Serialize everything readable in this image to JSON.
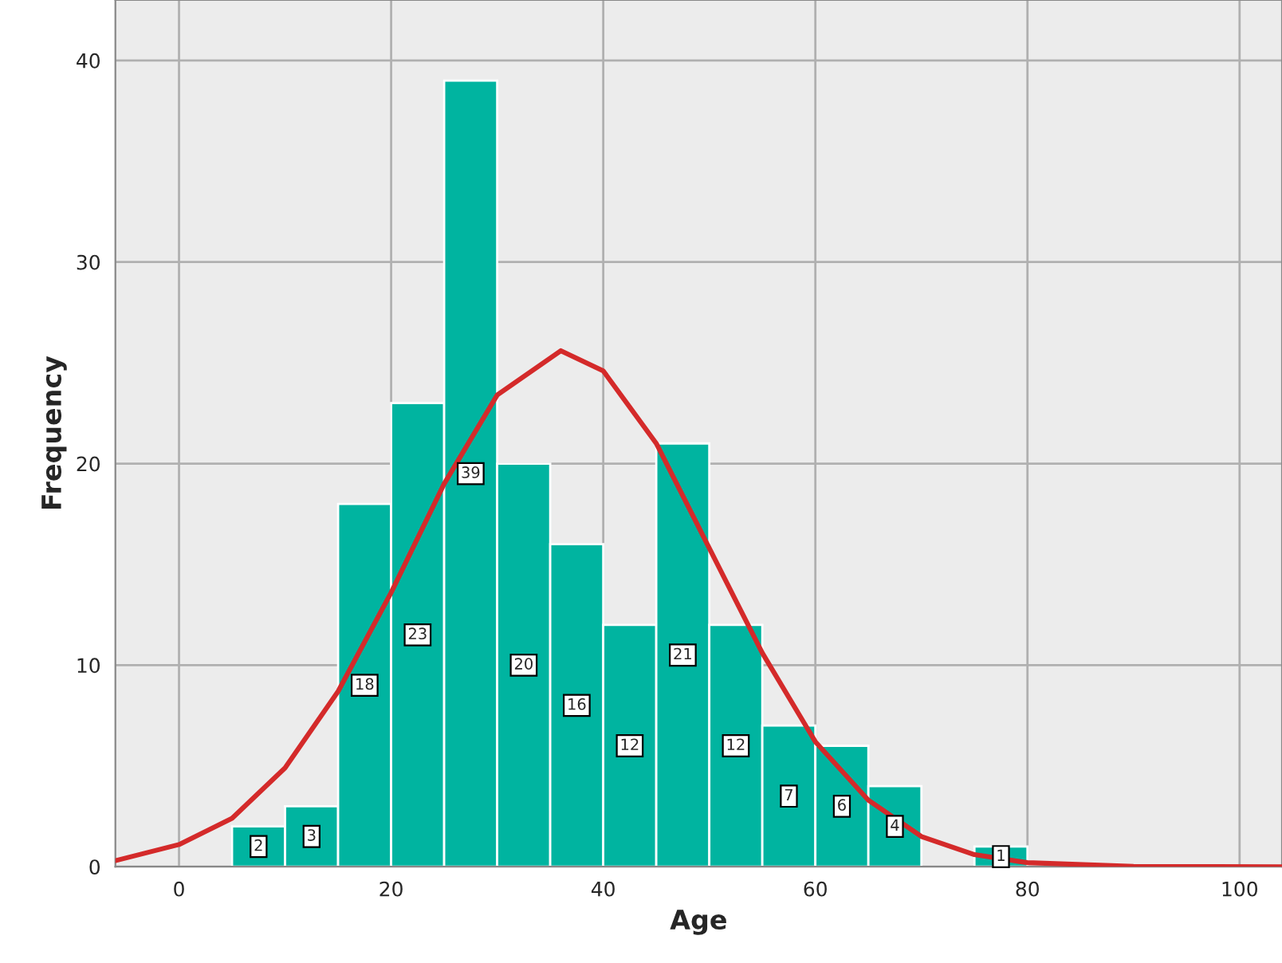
{
  "chart_data": {
    "type": "histogram",
    "xlabel": "Age",
    "ylabel": "Frequency",
    "bins": [
      5,
      10,
      15,
      20,
      25,
      30,
      35,
      40,
      45,
      50,
      55,
      60,
      65,
      70,
      75,
      80
    ],
    "values": [
      2,
      3,
      18,
      23,
      39,
      20,
      16,
      12,
      21,
      12,
      7,
      6,
      4,
      0,
      1
    ],
    "value_labels": [
      "2",
      "3",
      "18",
      "23",
      "39",
      "20",
      "16",
      "12",
      "21",
      "12",
      "7",
      "6",
      "4",
      null,
      "1"
    ],
    "color": "#00b4a0",
    "series": [
      {
        "type": "line",
        "color": "#d42a2a",
        "x": [
          -6,
          0,
          5,
          10,
          15,
          20,
          25,
          30,
          36,
          40,
          45,
          50,
          55,
          60,
          65,
          70,
          75,
          80,
          90,
          104
        ],
        "values": [
          0.3,
          1.1,
          2.4,
          4.9,
          8.7,
          13.6,
          19.0,
          23.4,
          25.6,
          24.6,
          21.0,
          15.8,
          10.6,
          6.2,
          3.3,
          1.5,
          0.6,
          0.2,
          0.02,
          0
        ]
      }
    ],
    "xlim": [
      -6,
      104
    ],
    "ylim": [
      0,
      43
    ],
    "xticks": [
      0,
      20,
      40,
      60,
      80,
      100
    ],
    "yticks": [
      0,
      10,
      20,
      30,
      40
    ],
    "grid": true
  }
}
